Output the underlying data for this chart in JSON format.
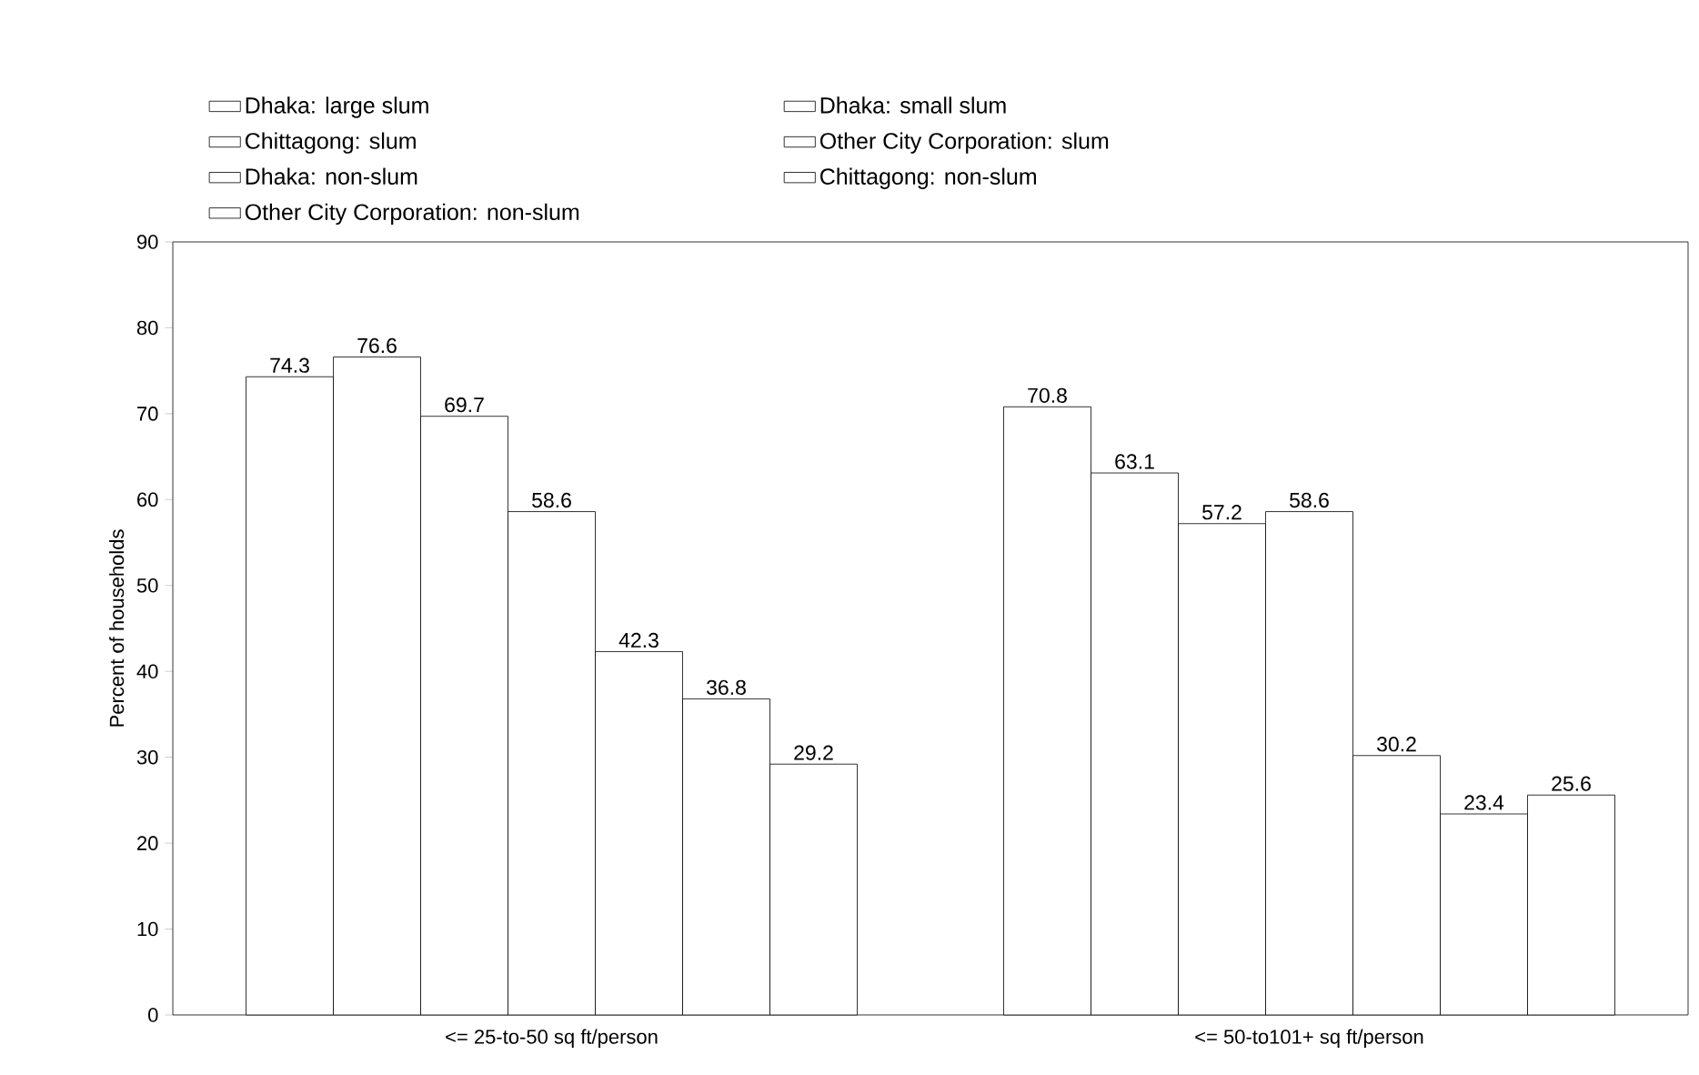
{
  "chart_data": {
    "type": "bar",
    "ylabel": "Percent of households",
    "categories": [
      "<= 25-to-50 sq ft/person",
      "<= 50-to101+ sq ft/person"
    ],
    "ylim": [
      0,
      90
    ],
    "yticks": [
      0,
      10,
      20,
      30,
      40,
      50,
      60,
      70,
      80,
      90
    ],
    "data_labels": true,
    "legend": "top",
    "series": [
      {
        "name": "Dhaka: large slum",
        "color": "#000000",
        "values": [
          74.3,
          70.8
        ]
      },
      {
        "name": "Dhaka: small slum",
        "color": "#000000",
        "values": [
          76.6,
          63.1
        ]
      },
      {
        "name": "Chittagong: slum",
        "color": "#000000",
        "values": [
          69.7,
          57.2
        ]
      },
      {
        "name": "Other City Corporation: slum",
        "color": "#000000",
        "values": [
          58.6,
          58.6
        ]
      },
      {
        "name": "Dhaka: non-slum",
        "color": "#000000",
        "values": [
          42.3,
          30.2
        ]
      },
      {
        "name": "Chittagong: non-slum",
        "color": "#000000",
        "values": [
          36.8,
          23.4
        ]
      },
      {
        "name": "Other City Corporation: non-slum",
        "color": "#000000",
        "values": [
          29.2,
          25.6
        ]
      }
    ]
  }
}
